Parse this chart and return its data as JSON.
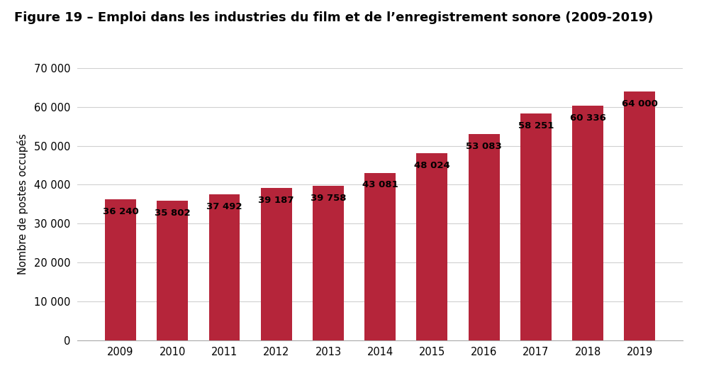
{
  "title": "Figure 19 – Emploi dans les industries du film et de l’enregistrement sonore (2009-2019)",
  "ylabel": "Nombre de postes occupés",
  "years": [
    2009,
    2010,
    2011,
    2012,
    2013,
    2014,
    2015,
    2016,
    2017,
    2018,
    2019
  ],
  "values": [
    36240,
    35802,
    37492,
    39187,
    39758,
    43081,
    48024,
    53083,
    58251,
    60336,
    64000
  ],
  "labels": [
    "36 240",
    "35 802",
    "37 492",
    "39 187",
    "39 758",
    "43 081",
    "48 024",
    "53 083",
    "58 251",
    "60 336",
    "64 000"
  ],
  "bar_color": "#b5253a",
  "background_color": "#ffffff",
  "ylim": [
    0,
    70000
  ],
  "yticks": [
    0,
    10000,
    20000,
    30000,
    40000,
    50000,
    60000,
    70000
  ],
  "ytick_labels": [
    "0",
    "10 000",
    "20 000",
    "30 000",
    "40 000",
    "50 000",
    "60 000",
    "70 000"
  ],
  "title_fontsize": 13,
  "axis_fontsize": 10.5,
  "label_fontsize": 9.5,
  "grid_color": "#d0d0d0",
  "bar_width": 0.6
}
